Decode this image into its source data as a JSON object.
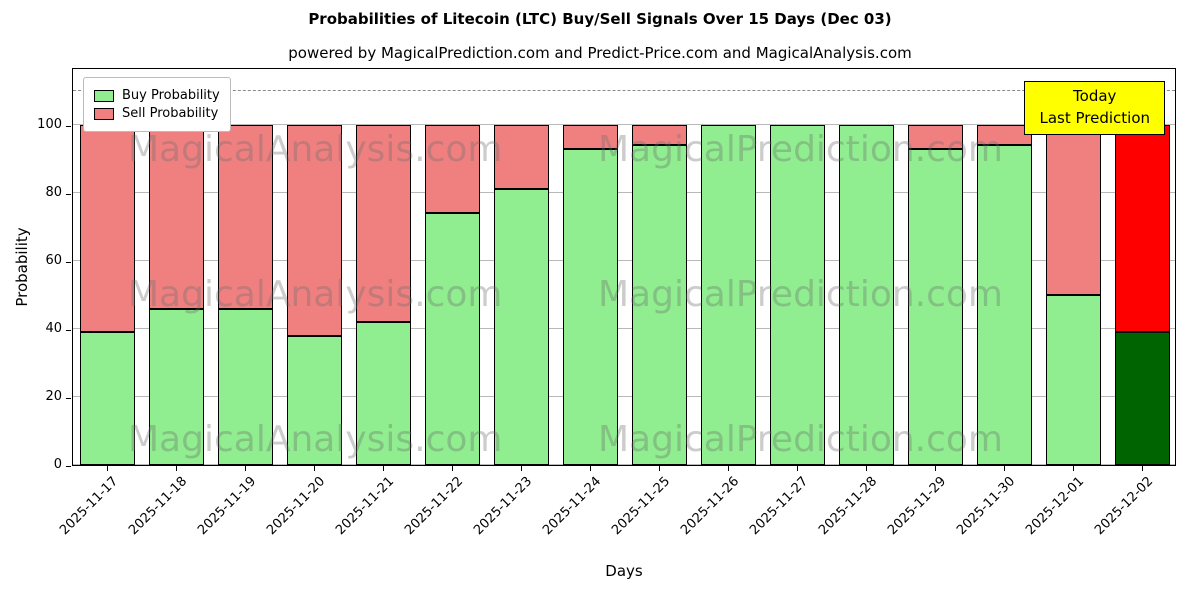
{
  "chart": {
    "title": "Probabilities of Litecoin (LTC) Buy/Sell Signals Over 15 Days (Dec 03)",
    "subtitle": "powered by MagicalPrediction.com and Predict-Price.com and MagicalAnalysis.com",
    "xlabel": "Days",
    "ylabel": "Probability"
  },
  "legend": {
    "items": [
      {
        "label": "Buy Probability",
        "color": "#90ee90"
      },
      {
        "label": "Sell Probability",
        "color": "#f08080"
      }
    ]
  },
  "annotation": {
    "line1": "Today",
    "line2": "Last Prediction",
    "bg": "#ffff00"
  },
  "watermarks": {
    "left_text": "MagicalAnalysis.com",
    "right_text": "MagicalPrediction.com"
  },
  "chart_data": {
    "type": "bar",
    "stacked": true,
    "title": "Probabilities of Litecoin (LTC) Buy/Sell Signals Over 15 Days (Dec 03)",
    "xlabel": "Days",
    "ylabel": "Probability",
    "categories": [
      "2025-11-17",
      "2025-11-18",
      "2025-11-19",
      "2025-11-20",
      "2025-11-21",
      "2025-11-22",
      "2025-11-23",
      "2025-11-24",
      "2025-11-25",
      "2025-11-26",
      "2025-11-27",
      "2025-11-28",
      "2025-11-29",
      "2025-11-30",
      "2025-12-01",
      "2025-12-02"
    ],
    "series": [
      {
        "name": "Buy Probability",
        "values": [
          39,
          46,
          46,
          38,
          42,
          74,
          81,
          93,
          94,
          100,
          100,
          100,
          93,
          94,
          50,
          39
        ]
      },
      {
        "name": "Sell Probability",
        "values": [
          61,
          54,
          54,
          62,
          58,
          26,
          19,
          7,
          6,
          0,
          0,
          0,
          7,
          6,
          50,
          61
        ]
      }
    ],
    "ylim": [
      0,
      117
    ],
    "yticks": [
      0,
      20,
      40,
      60,
      80,
      100
    ],
    "dashed_line_y": 110,
    "grid": true,
    "legend_position": "upper left",
    "colors": {
      "buy": "#90ee90",
      "sell": "#f08080",
      "last_buy": "#006400",
      "last_sell": "#ff0000"
    },
    "last_bar_special": true
  }
}
